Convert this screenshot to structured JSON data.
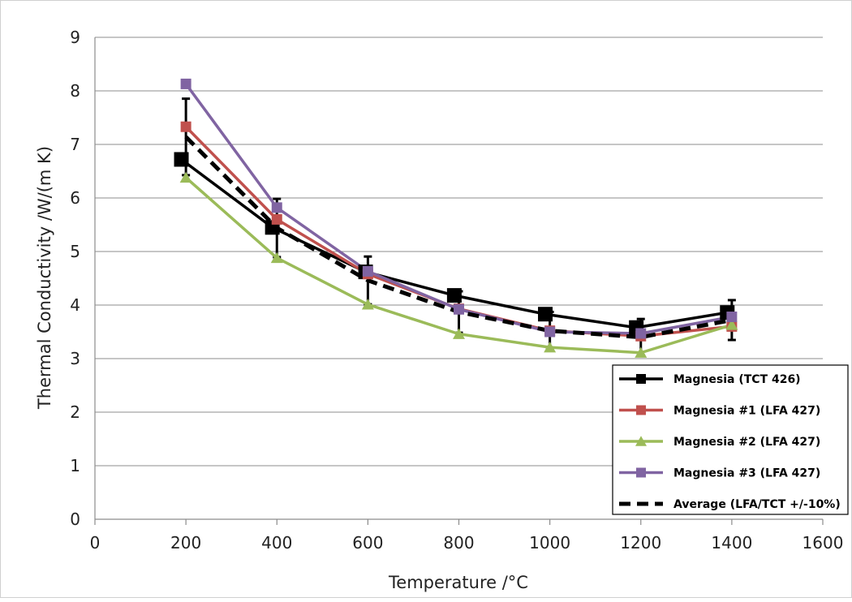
{
  "chart_data": {
    "type": "line",
    "title": "",
    "xlabel": "Temperature /°C",
    "ylabel": "Thermal Conductivity /W/(m K)",
    "xlim": [
      0,
      1600
    ],
    "ylim": [
      0,
      9
    ],
    "xticks": [
      0,
      200,
      400,
      600,
      800,
      1000,
      1200,
      1400,
      1600
    ],
    "yticks": [
      0,
      1,
      2,
      3,
      4,
      5,
      6,
      7,
      8,
      9
    ],
    "grid": true,
    "legend_position": "bottom-right",
    "series": [
      {
        "name": "Magnesia (TCT 426)",
        "color": "#000000",
        "marker": "square",
        "line_style": "solid",
        "x": [
          190,
          390,
          595,
          790,
          990,
          1190,
          1390
        ],
        "y": [
          6.72,
          5.45,
          4.62,
          4.18,
          3.83,
          3.58,
          3.86
        ]
      },
      {
        "name": "Magnesia #1 (LFA 427)",
        "color": "#c0504d",
        "marker": "square",
        "line_style": "solid",
        "x": [
          200,
          400,
          600,
          800,
          1000,
          1200,
          1400
        ],
        "y": [
          7.33,
          5.6,
          4.58,
          3.93,
          3.52,
          3.42,
          3.6
        ]
      },
      {
        "name": "Magnesia #2 (LFA 427)",
        "color": "#9bbb59",
        "marker": "triangle",
        "line_style": "solid",
        "x": [
          200,
          400,
          600,
          800,
          1000,
          1200,
          1400
        ],
        "y": [
          6.38,
          4.88,
          4.01,
          3.46,
          3.21,
          3.11,
          3.63
        ]
      },
      {
        "name": "Magnesia #3 (LFA 427)",
        "color": "#8064a2",
        "marker": "square",
        "line_style": "solid",
        "x": [
          200,
          400,
          600,
          800,
          1000,
          1200,
          1400
        ],
        "y": [
          8.13,
          5.82,
          4.63,
          3.92,
          3.5,
          3.47,
          3.78
        ]
      },
      {
        "name": "Average (LFA/TCT +/-10%)",
        "color": "#000000",
        "marker": "none",
        "line_style": "dashed",
        "x": [
          200,
          400,
          600,
          800,
          1000,
          1200,
          1400
        ],
        "y": [
          7.14,
          5.44,
          4.46,
          3.87,
          3.52,
          3.4,
          3.72
        ],
        "error_pct": 10
      }
    ]
  }
}
